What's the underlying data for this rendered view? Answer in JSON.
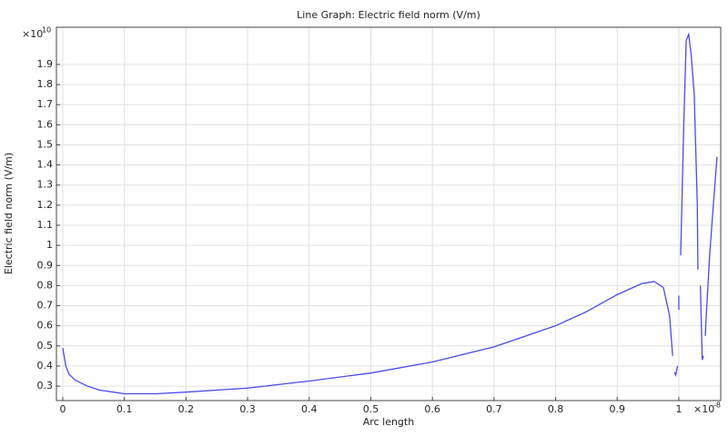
{
  "chart_data": {
    "type": "line",
    "title": "Line Graph: Electric field norm (V/m)",
    "x_label": "Arc length",
    "y_label": "Electric field norm (V/m)",
    "x_multiplier": {
      "base": "×10",
      "exponent": "-8"
    },
    "y_multiplier": {
      "base": "×10",
      "exponent": "10"
    },
    "x": [
      0,
      0.005,
      0.01,
      0.02,
      0.04,
      0.06,
      0.1,
      0.15,
      0.2,
      0.3,
      0.4,
      0.5,
      0.6,
      0.7,
      0.8,
      0.85,
      0.9,
      0.94,
      0.96,
      0.975,
      0.985,
      0.99,
      0.991,
      0.993,
      0.995,
      0.998,
      0.999,
      1.0,
      1.0,
      1.001,
      1.003,
      1.008,
      1.012,
      1.016,
      1.02,
      1.025,
      1.03,
      1.031,
      1.032,
      1.035,
      1.038,
      1.04,
      1.042,
      1.043,
      1.044,
      1.05,
      1.056,
      1.062
    ],
    "series": [
      {
        "name": "Electric field norm",
        "color": "#4a4aee",
        "values": [
          0.49,
          0.4,
          0.36,
          0.33,
          0.3,
          0.28,
          0.262,
          0.262,
          0.27,
          0.29,
          0.325,
          0.365,
          0.42,
          0.495,
          0.6,
          0.67,
          0.755,
          0.81,
          0.82,
          0.79,
          0.65,
          0.45,
          null,
          0.37,
          0.355,
          0.4,
          null,
          0.68,
          0.75,
          null,
          0.95,
          1.6,
          2.02,
          2.05,
          1.95,
          1.75,
          1.2,
          0.88,
          null,
          0.8,
          0.43,
          0.45,
          null,
          0.55,
          0.62,
          0.95,
          1.2,
          1.44
        ]
      }
    ],
    "xlim": [
      -0.0103,
      1.068
    ],
    "ylim": [
      0.228,
      2.085
    ],
    "xticks": [
      0,
      0.1,
      0.2,
      0.3,
      0.4,
      0.5,
      0.6,
      0.7,
      0.8,
      0.9,
      1
    ],
    "yticks": [
      0.3,
      0.4,
      0.5,
      0.6,
      0.7,
      0.8,
      0.9,
      1,
      1.1,
      1.2,
      1.3,
      1.4,
      1.5,
      1.6,
      1.7,
      1.8,
      1.9
    ],
    "grid": true
  }
}
